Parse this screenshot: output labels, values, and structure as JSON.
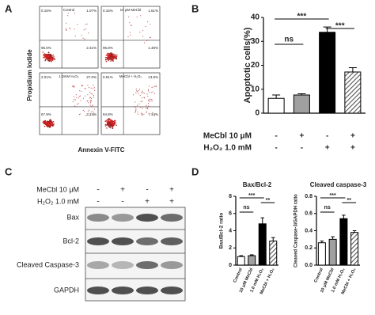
{
  "panel_labels": [
    "A",
    "B",
    "C",
    "D"
  ],
  "flow": {
    "y_label": "Propidium Iodide",
    "x_label": "Annexin V-FITC",
    "plots": [
      {
        "label": "Control",
        "quadrants": [
          "0.15%",
          "1.07%",
          "96.0%",
          "2.31%"
        ]
      },
      {
        "label": "10 μM MeCbl",
        "quadrants": [
          "0.16%",
          "1.61%",
          "96.8%",
          "1.48%"
        ]
      },
      {
        "label": "1.0mM H₂O₂",
        "quadrants": [
          "2.01%",
          "27.0%",
          "67.9%",
          "3.21%"
        ]
      },
      {
        "label": "MeCbl + H₂O₂",
        "quadrants": [
          "0.91%",
          "13.8%",
          "84.8%",
          "7.14%"
        ]
      }
    ]
  },
  "blot": {
    "treatments": [
      {
        "name": "MeCbl 10 μM",
        "signs": [
          "-",
          "+",
          "-",
          "+"
        ]
      },
      {
        "name": "H₂O₂  1.0 mM",
        "signs": [
          "-",
          "-",
          "+",
          "+"
        ]
      }
    ],
    "bands": [
      "Bax",
      "Bcl-2",
      "Cleaved Caspase-3",
      "GAPDH"
    ]
  },
  "chart_data": [
    {
      "type": "bar",
      "y_label": "Apoptotic cells(%)",
      "values": [
        6.2,
        7.6,
        33.8,
        17.2
      ],
      "errors": [
        1.4,
        0.5,
        2.2,
        1.8
      ],
      "colors": [
        "#ffffff",
        "#a0a0a0",
        "#000000",
        "hatch"
      ],
      "ylim": [
        0,
        40
      ],
      "yticks": [
        0,
        10,
        20,
        30,
        40
      ],
      "annotations": [
        {
          "label": "ns",
          "from": 0,
          "to": 1
        },
        {
          "label": "***",
          "from": 0,
          "to": 2
        },
        {
          "label": "***",
          "from": 2,
          "to": 3
        }
      ],
      "conditions": [
        {
          "name": "MeCbl  10 μM",
          "signs": [
            "-",
            "+",
            "-",
            "+"
          ]
        },
        {
          "name": "H₂O₂  1.0 mM",
          "signs": [
            "-",
            "-",
            "+",
            "+"
          ]
        }
      ]
    },
    {
      "type": "bar",
      "title": "Bax/Bcl-2",
      "y_label": "Bax/Bcl-2 ratio",
      "categories": [
        "Control",
        "10 μM MeCbl",
        "1.0 mM H₂O₂",
        "MeCbl + H₂O₂"
      ],
      "values": [
        1.0,
        1.1,
        4.8,
        2.8
      ],
      "errors": [
        0.1,
        0.1,
        0.7,
        0.4
      ],
      "colors": [
        "#ffffff",
        "#a0a0a0",
        "#000000",
        "hatch"
      ],
      "ylim": [
        0,
        8
      ],
      "yticks": [
        0,
        2,
        4,
        6,
        8
      ],
      "annotations": [
        {
          "label": "ns",
          "from": 0,
          "to": 1
        },
        {
          "label": "***",
          "from": 0,
          "to": 2
        },
        {
          "label": "**",
          "from": 2,
          "to": 3
        }
      ]
    },
    {
      "type": "bar",
      "title": "Cleaved caspase-3",
      "y_label": "Cleaved Caspase-3/GAPDH ratio",
      "categories": [
        "Control",
        "10 μM MeCbl",
        "1.0 mM H₂O₂",
        "MeCbl + H₂O₂"
      ],
      "values": [
        0.26,
        0.3,
        0.54,
        0.38
      ],
      "errors": [
        0.02,
        0.03,
        0.04,
        0.02
      ],
      "colors": [
        "#ffffff",
        "#a0a0a0",
        "#000000",
        "hatch"
      ],
      "ylim": [
        0,
        0.8
      ],
      "yticks": [
        {
          "value": 0,
          "label": "0.0"
        },
        0.2,
        0.4,
        0.6,
        0.8
      ],
      "annotations": [
        {
          "label": "ns",
          "from": 0,
          "to": 1
        },
        {
          "label": "***",
          "from": 0,
          "to": 2
        },
        {
          "label": "**",
          "from": 2,
          "to": 3
        }
      ]
    }
  ]
}
